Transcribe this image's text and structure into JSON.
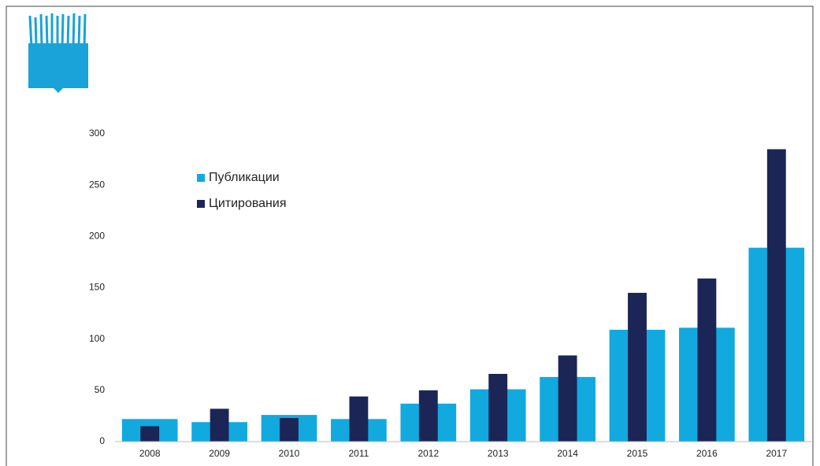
{
  "chart_data": {
    "type": "bar",
    "categories": [
      "2008",
      "2009",
      "2010",
      "2011",
      "2012",
      "2013",
      "2014",
      "2015",
      "2016",
      "2017"
    ],
    "series": [
      {
        "name": "Публикации",
        "color": "#12a9df",
        "values": [
          22,
          19,
          26,
          22,
          37,
          51,
          63,
          109,
          111,
          189
        ]
      },
      {
        "name": "Цитирования",
        "color": "#1b2657",
        "values": [
          15,
          32,
          23,
          44,
          50,
          66,
          84,
          145,
          159,
          285
        ]
      }
    ],
    "ylim": [
      0,
      300
    ],
    "yticks": [
      0,
      50,
      100,
      150,
      200,
      250,
      300
    ],
    "grid": false,
    "legend": "upper left"
  }
}
